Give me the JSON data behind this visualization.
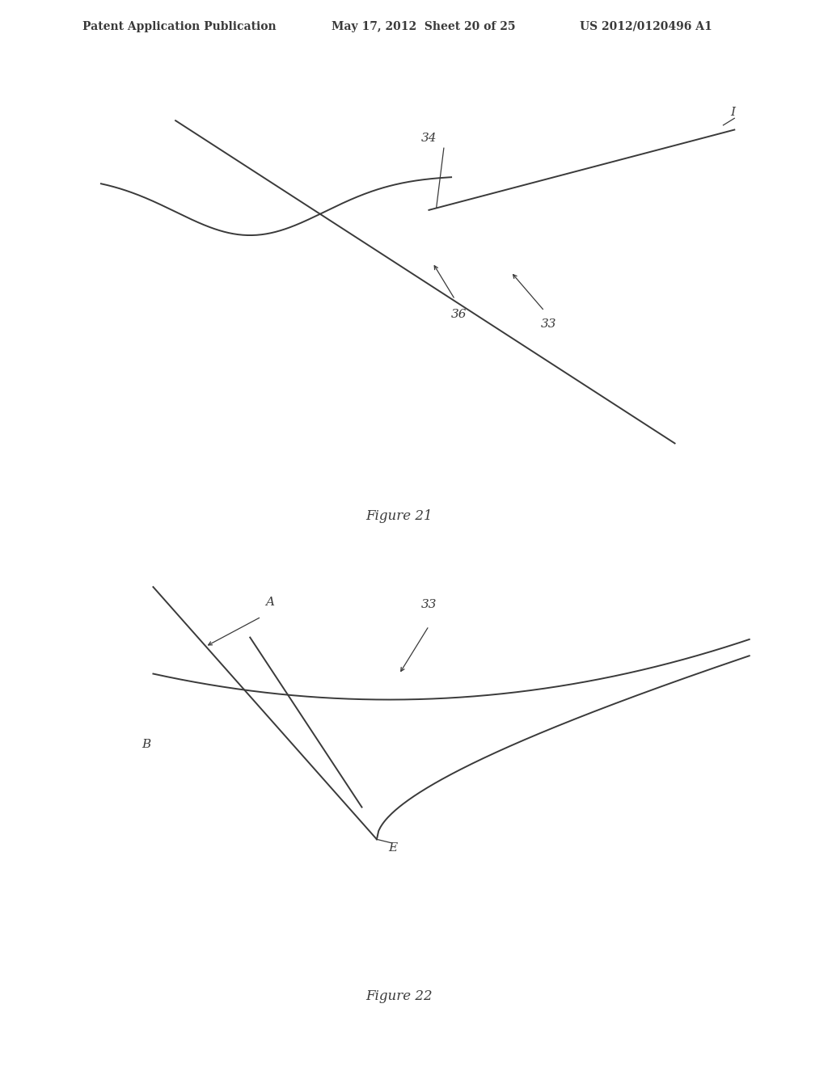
{
  "background_color": "#ffffff",
  "header_left": "Patent Application Publication",
  "header_mid": "May 17, 2012  Sheet 20 of 25",
  "header_right": "US 2012/0120496 A1",
  "header_fontsize": 10,
  "fig21_caption": "Figure 21",
  "fig22_caption": "Figure 22",
  "line_color": "#3a3a3a",
  "line_width": 1.4,
  "label_fontsize": 11,
  "label_color": "#3a3a3a"
}
